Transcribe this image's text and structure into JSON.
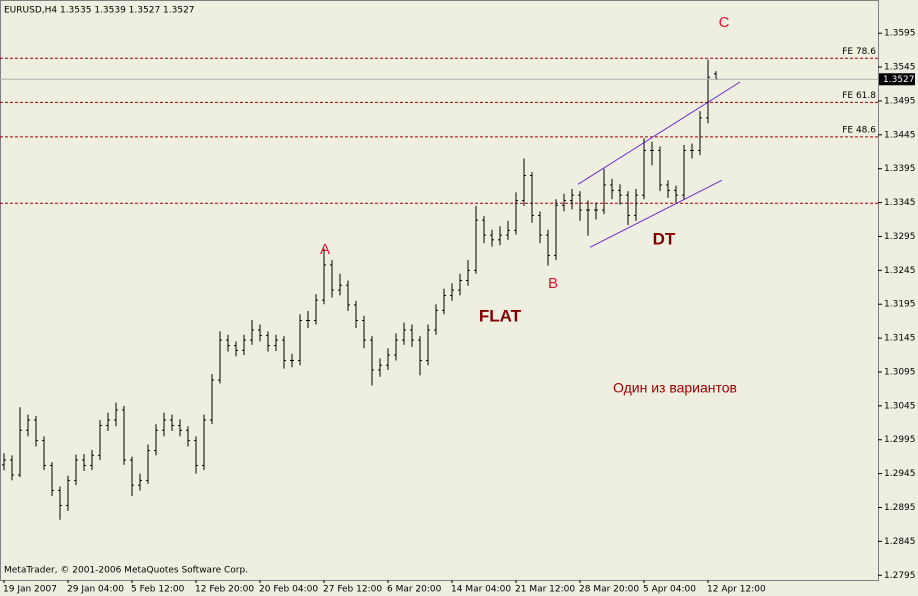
{
  "chart_data": {
    "type": "ohlc",
    "title": "EURUSD,H4  1.3535 1.3539 1.3527 1.3527",
    "copyright": "MetaTrader, © 2001-2006 MetaQuotes Software Corp.",
    "categories": [
      "19 Jan 2007",
      null,
      null,
      null,
      null,
      null,
      null,
      null,
      "29 Jan 04:00",
      null,
      null,
      null,
      null,
      null,
      null,
      null,
      "5 Feb 12:00",
      null,
      null,
      null,
      null,
      null,
      null,
      null,
      "12 Feb 20:00",
      null,
      null,
      null,
      null,
      null,
      null,
      null,
      "20 Feb 04:00",
      null,
      null,
      null,
      null,
      null,
      null,
      null,
      "27 Feb 12:00",
      null,
      null,
      null,
      null,
      null,
      null,
      null,
      "6 Mar 20:00",
      null,
      null,
      null,
      null,
      null,
      null,
      null,
      "14 Mar 04:00",
      null,
      null,
      null,
      null,
      null,
      null,
      null,
      "21 Mar 12:00",
      null,
      null,
      null,
      null,
      null,
      null,
      null,
      "28 Mar 20:00",
      null,
      null,
      null,
      null,
      null,
      null,
      null,
      "5 Apr 04:00",
      null,
      null,
      null,
      null,
      null,
      null,
      null,
      "12 Apr 12:00",
      null
    ],
    "open": [
      1.2958,
      1.2965,
      1.2943,
      1.3009,
      1.3024,
      1.2994,
      1.2957,
      1.292,
      1.2898,
      1.2935,
      1.2965,
      1.2957,
      1.2972,
      1.3016,
      1.3024,
      1.3039,
      1.2965,
      1.2928,
      1.2935,
      1.2979,
      1.3009,
      1.3024,
      1.3016,
      1.3009,
      1.2994,
      1.2957,
      1.3024,
      1.3083,
      1.3142,
      1.3134,
      1.3127,
      1.3142,
      1.3157,
      1.3149,
      1.3134,
      1.3142,
      1.3112,
      1.3112,
      1.3171,
      1.3171,
      1.3201,
      1.3253,
      1.3216,
      1.3223,
      1.3194,
      1.3171,
      1.3142,
      1.3098,
      1.3105,
      1.312,
      1.3142,
      1.3157,
      1.3142,
      1.3112,
      1.3157,
      1.3186,
      1.3208,
      1.3216,
      1.323,
      1.3245,
      1.3319,
      1.3297,
      1.329,
      1.3297,
      1.3304,
      1.3348,
      1.3385,
      1.3326,
      1.3297,
      1.3267,
      1.3341,
      1.3348,
      1.3356,
      1.3334,
      1.3334,
      1.3334,
      1.3371,
      1.3363,
      1.3356,
      1.3326,
      1.3356,
      1.3422,
      1.3422,
      1.3371,
      1.3363,
      1.3356,
      1.3422,
      1.3422,
      1.347,
      1.3535
    ],
    "high": [
      1.2975,
      1.2972,
      1.3043,
      1.3032,
      1.303,
      1.3,
      1.2962,
      1.2926,
      1.2942,
      1.2973,
      1.2974,
      1.298,
      1.3024,
      1.3035,
      1.305,
      1.3045,
      1.297,
      1.2945,
      1.2988,
      1.3018,
      1.3035,
      1.3032,
      1.3025,
      1.3015,
      1.3,
      1.3032,
      1.3092,
      1.3155,
      1.315,
      1.314,
      1.315,
      1.3172,
      1.3165,
      1.3155,
      1.315,
      1.3148,
      1.3122,
      1.318,
      1.3185,
      1.321,
      1.3277,
      1.326,
      1.324,
      1.323,
      1.32,
      1.3178,
      1.3148,
      1.3115,
      1.313,
      1.3152,
      1.3168,
      1.3165,
      1.3148,
      1.3165,
      1.3195,
      1.3218,
      1.3226,
      1.324,
      1.326,
      1.334,
      1.3325,
      1.3305,
      1.331,
      1.3318,
      1.336,
      1.341,
      1.339,
      1.3332,
      1.3305,
      1.335,
      1.3358,
      1.3365,
      1.3362,
      1.3348,
      1.3345,
      1.3395,
      1.338,
      1.3372,
      1.3362,
      1.3365,
      1.344,
      1.3435,
      1.3428,
      1.3378,
      1.337,
      1.343,
      1.3432,
      1.348,
      1.3556,
      1.3539
    ],
    "low": [
      1.295,
      1.2935,
      1.294,
      1.3,
      1.2985,
      1.295,
      1.2912,
      1.2877,
      1.289,
      1.2928,
      1.2949,
      1.295,
      1.2965,
      1.3008,
      1.3015,
      1.2958,
      1.2912,
      1.292,
      1.293,
      1.2972,
      1.3,
      1.3008,
      1.3,
      1.2985,
      1.2945,
      1.295,
      1.3018,
      1.3078,
      1.3125,
      1.3118,
      1.312,
      1.3135,
      1.314,
      1.3125,
      1.3126,
      1.31,
      1.3102,
      1.3105,
      1.316,
      1.3165,
      1.3195,
      1.3205,
      1.3208,
      1.3185,
      1.316,
      1.313,
      1.3075,
      1.3088,
      1.3098,
      1.3112,
      1.3135,
      1.3132,
      1.309,
      1.3105,
      1.315,
      1.318,
      1.32,
      1.3208,
      1.3222,
      1.324,
      1.3285,
      1.328,
      1.3282,
      1.329,
      1.3298,
      1.334,
      1.3315,
      1.3285,
      1.3252,
      1.326,
      1.3332,
      1.3335,
      1.3318,
      1.3296,
      1.332,
      1.3328,
      1.335,
      1.3342,
      1.3312,
      1.3318,
      1.335,
      1.34,
      1.3362,
      1.3352,
      1.3345,
      1.335,
      1.341,
      1.3415,
      1.3462,
      1.3527
    ],
    "close": [
      1.2965,
      1.2943,
      1.3009,
      1.3024,
      1.2994,
      1.2957,
      1.292,
      1.2898,
      1.2935,
      1.2965,
      1.2957,
      1.2972,
      1.3016,
      1.3024,
      1.3039,
      1.2965,
      1.2928,
      1.2935,
      1.2979,
      1.3009,
      1.3024,
      1.3016,
      1.3009,
      1.2994,
      1.2957,
      1.3024,
      1.3083,
      1.3142,
      1.3134,
      1.3127,
      1.3142,
      1.3157,
      1.3149,
      1.3134,
      1.3142,
      1.3112,
      1.3112,
      1.3171,
      1.3171,
      1.3201,
      1.3253,
      1.3216,
      1.3223,
      1.3194,
      1.3171,
      1.3142,
      1.3098,
      1.3105,
      1.312,
      1.3142,
      1.3157,
      1.3142,
      1.3112,
      1.3157,
      1.3186,
      1.3208,
      1.3216,
      1.323,
      1.3245,
      1.3319,
      1.3297,
      1.329,
      1.3297,
      1.3304,
      1.3348,
      1.3385,
      1.3326,
      1.3297,
      1.3267,
      1.3341,
      1.3348,
      1.3356,
      1.3334,
      1.3334,
      1.3334,
      1.3371,
      1.3363,
      1.3356,
      1.3326,
      1.3356,
      1.3422,
      1.3422,
      1.3371,
      1.3363,
      1.3356,
      1.3422,
      1.3422,
      1.347,
      1.353,
      1.3527
    ],
    "color": "#000000",
    "ylim": [
      1.2788,
      1.3644
    ],
    "yticks": [
      1.2795,
      1.2845,
      1.2895,
      1.2945,
      1.2995,
      1.3045,
      1.3095,
      1.3145,
      1.3195,
      1.3245,
      1.3295,
      1.3345,
      1.3395,
      1.3445,
      1.3495,
      1.3545,
      1.3595
    ],
    "levels": [
      {
        "label": "FE 78.6",
        "value": 1.3558
      },
      {
        "label": "FE 61.8",
        "value": 1.3493
      },
      {
        "label": "FE 48.6",
        "value": 1.3442
      },
      {
        "value": 1.3344
      }
    ],
    "level_color": "#a00000",
    "trendlines": [
      {
        "x": [
          71.75,
          92
        ],
        "y": [
          1.3372,
          1.3523
        ]
      },
      {
        "x": [
          73.25,
          89.75
        ],
        "y": [
          1.3279,
          1.3378
        ]
      }
    ],
    "trendline_color": "#6a2ccc",
    "annotations": [
      "A",
      "B",
      "C",
      "FLAT",
      "DT",
      "Один из вариантов"
    ]
  }
}
